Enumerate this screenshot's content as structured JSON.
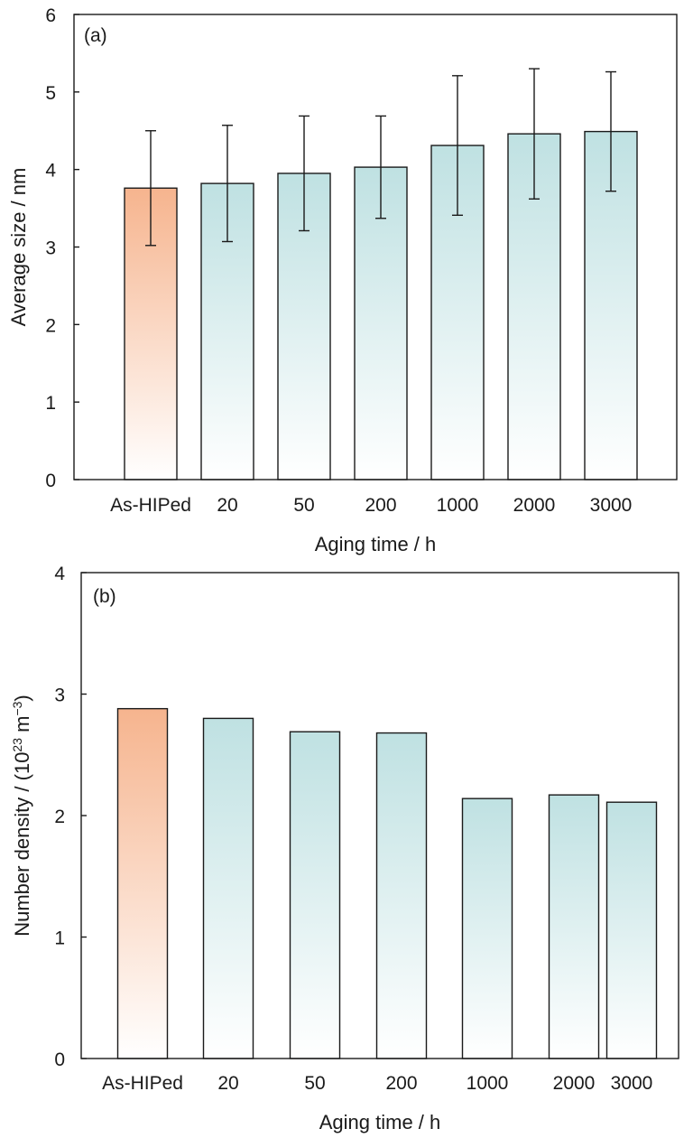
{
  "colors": {
    "highlight_bar": "#f6b48e",
    "normal_bar": "#bfe1e2",
    "bar_fade": "#ffffff",
    "stroke": "#1a1a1a"
  },
  "chart_data": [
    {
      "type": "bar",
      "panel_label": "(a)",
      "categories": [
        "As-HIPed",
        "20",
        "50",
        "200",
        "1000",
        "2000",
        "3000"
      ],
      "values": [
        3.76,
        3.82,
        3.95,
        4.03,
        4.31,
        4.46,
        4.49
      ],
      "error": [
        0.74,
        0.75,
        0.74,
        0.66,
        0.9,
        0.84,
        0.77
      ],
      "highlight_index": 0,
      "xlabel": "Aging time / h",
      "ylabel": "Average size / nm",
      "ylim": [
        0,
        6
      ],
      "yticks": [
        "0",
        "1",
        "2",
        "3",
        "4",
        "5",
        "6"
      ],
      "grid": false
    },
    {
      "type": "bar",
      "panel_label": "(b)",
      "categories": [
        "As-HIPed",
        "20",
        "50",
        "200",
        "1000",
        "2000",
        "3000"
      ],
      "values": [
        2.88,
        2.8,
        2.69,
        2.68,
        2.14,
        2.17,
        2.11
      ],
      "highlight_index": 0,
      "xlabel": "Aging time / h",
      "ylabel_parts": [
        "Number density / (10",
        "23",
        " m",
        "−3",
        ")"
      ],
      "ylim": [
        0,
        4
      ],
      "yticks": [
        "0",
        "1",
        "2",
        "3",
        "4"
      ],
      "grid": false
    }
  ]
}
